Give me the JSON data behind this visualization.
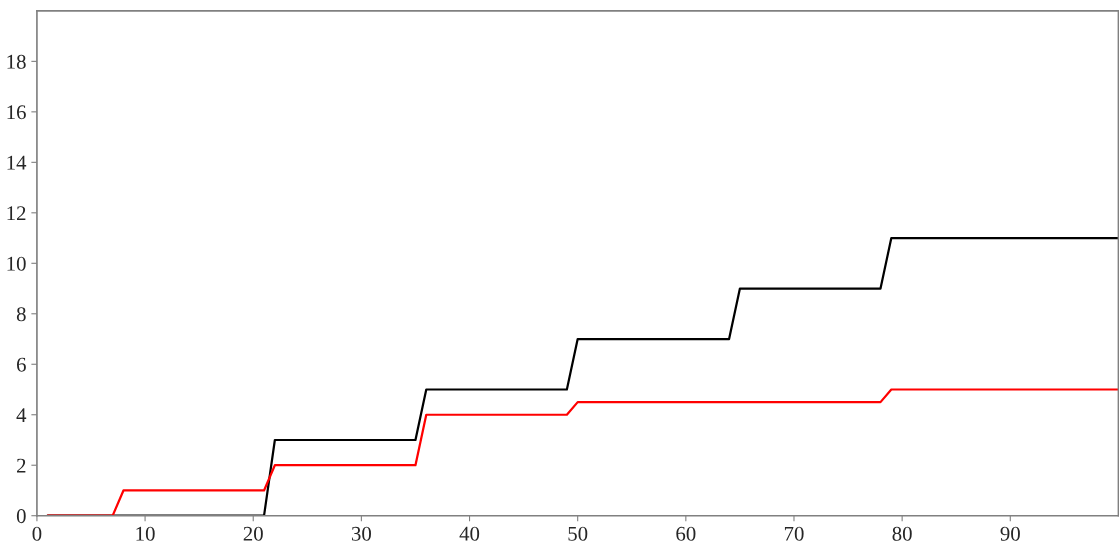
{
  "chart_data": {
    "type": "line",
    "series": [
      {
        "color": "#000000",
        "x": [
          1,
          21,
          22,
          35,
          36,
          49,
          50,
          64,
          65,
          78,
          79,
          100
        ],
        "values": [
          0,
          0,
          3,
          3,
          5,
          5,
          7,
          7,
          9,
          9,
          11,
          11
        ]
      },
      {
        "color": "#ff0000",
        "x": [
          1,
          7,
          8,
          21,
          22,
          35,
          36,
          49,
          50,
          78,
          79,
          100
        ],
        "values": [
          0,
          0,
          1,
          1,
          2,
          2,
          4,
          4,
          4.5,
          4.5,
          5,
          5
        ]
      }
    ],
    "xlim": [
      0,
      100
    ],
    "ylim": [
      0,
      20
    ],
    "xticks": [
      0,
      10,
      20,
      30,
      40,
      50,
      60,
      70,
      80,
      90
    ],
    "yticks": [
      0,
      2,
      4,
      6,
      8,
      10,
      12,
      14,
      16,
      18
    ],
    "grid": false,
    "legend": false,
    "marker": "none",
    "line_style": "solid"
  }
}
